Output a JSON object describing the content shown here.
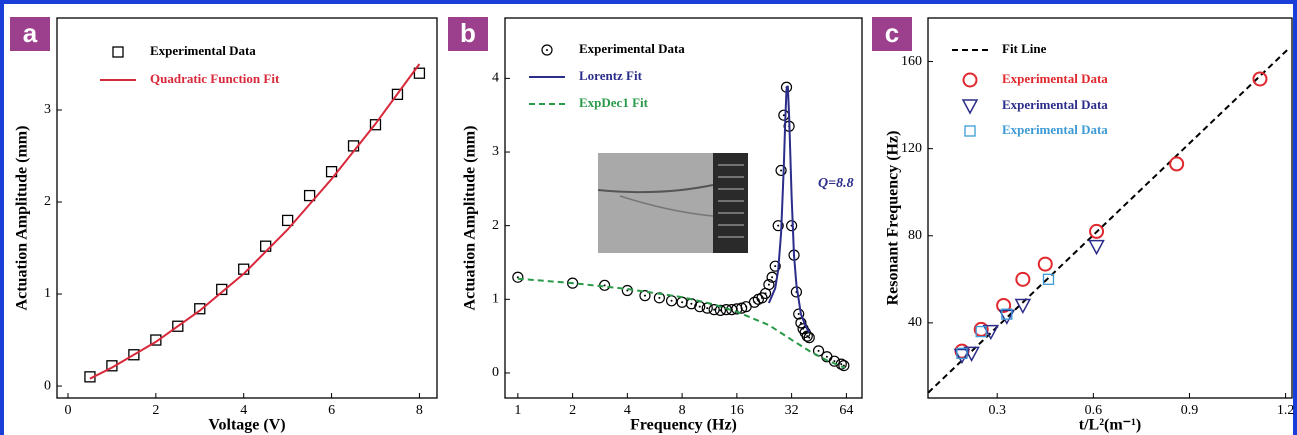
{
  "chart_data": [
    {
      "type": "scatter",
      "label": "a",
      "xlabel": "Voltage (V)",
      "ylabel": "Actuation Amplitude (mm)",
      "xlim": [
        -0.25,
        8.4
      ],
      "ylim": [
        -0.13,
        4.0
      ],
      "xticks": [
        0,
        2,
        4,
        6,
        8
      ],
      "yticks": [
        0,
        1,
        2,
        3
      ],
      "series": [
        {
          "name": "Experimental Data",
          "color": "#000000",
          "marker": "square",
          "x": [
            0.5,
            1,
            1.5,
            2,
            2.5,
            3,
            3.5,
            4,
            4.5,
            5,
            5.5,
            6,
            6.5,
            7,
            7.5,
            8
          ],
          "values": [
            0.1,
            0.22,
            0.34,
            0.5,
            0.65,
            0.84,
            1.05,
            1.27,
            1.52,
            1.8,
            2.07,
            2.33,
            2.61,
            2.84,
            3.17,
            3.4
          ]
        },
        {
          "name": "Quadratic Function Fit",
          "color": "#d8283a",
          "marker": "line",
          "x": [
            0.5,
            1,
            2,
            3,
            4,
            5,
            6,
            7,
            8
          ],
          "values": [
            0.08,
            0.2,
            0.48,
            0.82,
            1.22,
            1.7,
            2.25,
            2.85,
            3.5
          ]
        }
      ]
    },
    {
      "type": "scatter",
      "label": "b",
      "xlabel": "Frequency (Hz)",
      "ylabel": "Actuation Amplitude (mm)",
      "annotation": "Q=8.8",
      "xscale": "log2",
      "xlim": [
        0.85,
        78
      ],
      "ylim": [
        -0.34,
        4.82
      ],
      "xticks": [
        1,
        2,
        4,
        8,
        16,
        32,
        64
      ],
      "yticks": [
        0,
        1,
        2,
        3,
        4
      ],
      "series": [
        {
          "name": "Experimental Data",
          "color": "#000000",
          "marker": "circle-dot",
          "x": [
            1,
            2,
            3,
            4,
            5,
            6,
            7,
            8,
            9,
            10,
            11,
            12,
            13,
            14,
            15,
            16,
            17,
            18,
            20,
            21,
            22,
            23,
            24,
            25,
            26,
            27,
            28,
            29,
            30,
            31,
            32,
            33,
            34,
            35,
            36,
            37,
            38,
            39,
            40,
            45,
            50,
            55,
            60,
            62
          ],
          "values": [
            1.3,
            1.22,
            1.19,
            1.12,
            1.05,
            1.02,
            0.98,
            0.96,
            0.94,
            0.9,
            0.88,
            0.86,
            0.85,
            0.86,
            0.86,
            0.87,
            0.88,
            0.9,
            0.96,
            1.0,
            1.02,
            1.08,
            1.2,
            1.3,
            1.45,
            2.0,
            2.75,
            3.5,
            3.88,
            3.35,
            2.0,
            1.6,
            1.1,
            0.8,
            0.68,
            0.6,
            0.55,
            0.5,
            0.48,
            0.3,
            0.22,
            0.16,
            0.12,
            0.1
          ]
        },
        {
          "name": "Lorentz Fit",
          "color": "#2b2d8a",
          "marker": "line",
          "x": [
            24,
            26,
            27,
            28,
            29,
            29.5,
            30,
            30.5,
            31,
            32,
            33,
            34,
            36,
            38,
            40
          ],
          "values": [
            0.95,
            1.15,
            1.4,
            1.9,
            2.8,
            3.4,
            3.85,
            3.9,
            3.5,
            2.4,
            1.6,
            1.2,
            0.8,
            0.65,
            0.55
          ]
        },
        {
          "name": "ExpDec1 Fit",
          "color": "#2a9a4a",
          "marker": "line",
          "dash": true,
          "x": [
            1,
            2,
            4,
            8,
            12,
            16,
            24,
            32,
            40,
            50,
            63
          ],
          "values": [
            1.28,
            1.22,
            1.14,
            1.03,
            0.93,
            0.83,
            0.65,
            0.45,
            0.3,
            0.17,
            0.07
          ]
        }
      ]
    },
    {
      "type": "scatter",
      "label": "c",
      "xlabel": "t/L²(m⁻¹)",
      "ylabel": "Resonant Frequency (Hz)",
      "xlim": [
        0.084,
        1.22
      ],
      "ylim": [
        5.5,
        180
      ],
      "xticks": [
        0.3,
        0.6,
        0.9,
        1.2
      ],
      "yticks": [
        40,
        80,
        120,
        160
      ],
      "series": [
        {
          "name": "Fit Line",
          "color": "#000000",
          "marker": "line",
          "dash": true,
          "x": [
            0.085,
            1.21
          ],
          "values": [
            8,
            166
          ]
        },
        {
          "name": "Experimental Data",
          "color": "#e0282e",
          "marker": "circle",
          "x": [
            0.19,
            0.25,
            0.32,
            0.38,
            0.45,
            0.61,
            0.86,
            1.12
          ],
          "values": [
            27,
            37,
            48,
            60,
            67,
            82,
            113,
            152
          ]
        },
        {
          "name": "Experimental Data",
          "color": "#2b2d8a",
          "marker": "triangle",
          "x": [
            0.19,
            0.22,
            0.28,
            0.33,
            0.38,
            0.61
          ],
          "values": [
            25,
            26,
            36,
            43,
            48,
            75
          ]
        },
        {
          "name": "Experimental Data",
          "color": "#3d9ad6",
          "marker": "square",
          "x": [
            0.19,
            0.25,
            0.33,
            0.46
          ],
          "values": [
            26,
            36,
            44,
            60
          ]
        }
      ]
    }
  ]
}
